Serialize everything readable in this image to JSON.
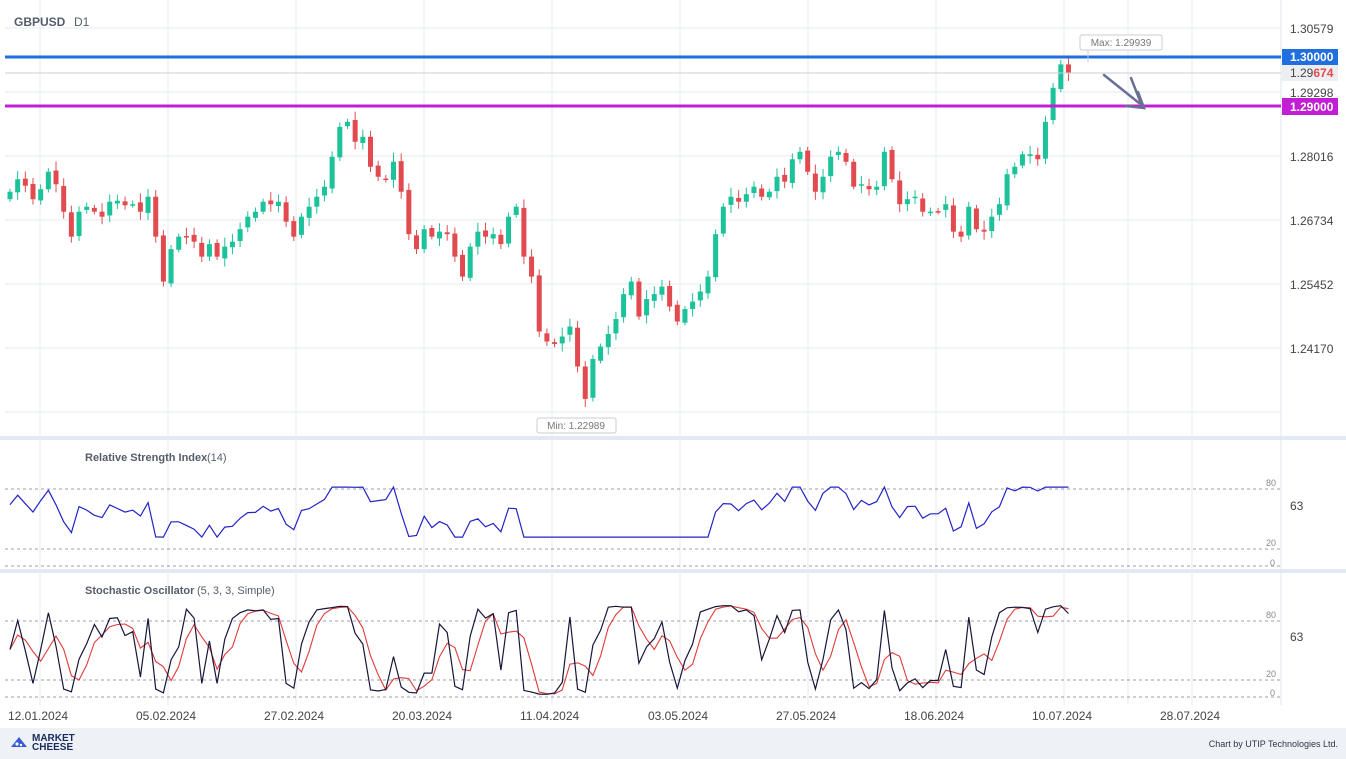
{
  "header": {
    "symbol": "GBPUSD",
    "timeframe": "D1"
  },
  "chart_data": {
    "type": "candlestick",
    "symbol": "GBPUSD",
    "timeframe": "D1",
    "price_axis": {
      "ticks": [
        "1.30579",
        "1.29298",
        "1.28016",
        "1.26734",
        "1.25452",
        "1.24170"
      ],
      "range": [
        1.2205,
        1.3125
      ]
    },
    "date_labels": [
      "12.01.2024",
      "05.02.2024",
      "27.02.2024",
      "20.03.2024",
      "11.04.2024",
      "03.05.2024",
      "27.05.2024",
      "18.06.2024",
      "10.07.2024",
      "28.07.2024"
    ],
    "closes": [
      1.273,
      1.2755,
      1.2742,
      1.2715,
      1.2735,
      1.277,
      1.2745,
      1.269,
      1.264,
      1.269,
      1.27,
      1.269,
      1.268,
      1.271,
      1.2712,
      1.2703,
      1.2705,
      1.269,
      1.272,
      1.264,
      1.255,
      1.2615,
      1.264,
      1.264,
      1.263,
      1.26,
      1.2625,
      1.26,
      1.262,
      1.263,
      1.2655,
      1.268,
      1.269,
      1.271,
      1.2705,
      1.271,
      1.267,
      1.264,
      1.268,
      1.27,
      1.272,
      1.274,
      1.28,
      1.286,
      1.287,
      1.283,
      1.284,
      1.278,
      1.276,
      1.2755,
      1.279,
      1.273,
      1.2645,
      1.2615,
      1.2655,
      1.264,
      1.265,
      1.2645,
      1.26,
      1.256,
      1.262,
      1.265,
      1.264,
      1.2645,
      1.2625,
      1.268,
      1.27,
      1.26,
      1.256,
      1.245,
      1.243,
      1.2425,
      1.244,
      1.246,
      1.238,
      1.2315,
      1.2395,
      1.242,
      1.2445,
      1.2475,
      1.2525,
      1.255,
      1.248,
      1.2515,
      1.2525,
      1.254,
      1.25,
      1.247,
      1.2495,
      1.251,
      1.253,
      1.256,
      1.2645,
      1.27,
      1.272,
      1.271,
      1.2725,
      1.274,
      1.272,
      1.273,
      1.276,
      1.275,
      1.2795,
      1.281,
      1.277,
      1.273,
      1.276,
      1.28,
      1.281,
      1.279,
      1.274,
      1.2745,
      1.2735,
      1.274,
      1.281,
      1.2755,
      1.2705,
      1.2715,
      1.272,
      1.269,
      1.269,
      1.269,
      1.2705,
      1.265,
      1.264,
      1.27,
      1.2655,
      1.265,
      1.268,
      1.2705,
      1.2765,
      1.278,
      1.2805,
      1.2805,
      1.2795,
      1.287,
      1.2938,
      1.2985,
      1.2968
    ],
    "max_label": "Max: 1.29939",
    "min_label": "Min: 1.22989",
    "current_price": {
      "label_prefix": "1.29",
      "label_suffix": "674",
      "value": 1.29674
    },
    "levels": [
      {
        "value": 1.3,
        "label": "1.30000",
        "color": "#1f6fde"
      },
      {
        "value": 1.29,
        "label": "1.29000",
        "color": "#c21fd4"
      }
    ],
    "colors": {
      "bull": "#1cc29a",
      "bear": "#e14b4f"
    }
  },
  "rsi": {
    "title": "Relative Strength Index",
    "params": "(14)",
    "value_label": "63",
    "levels": [
      "80",
      "20",
      "0"
    ],
    "color": "#2323c8"
  },
  "stochastic": {
    "title": "Stochastic Oscillator",
    "params": "(5, 3, 3, Simple)",
    "value_label": "63",
    "levels": [
      "80",
      "20",
      "0"
    ],
    "colors": {
      "k": "#16163a",
      "d": "#e03a3a"
    }
  },
  "footer": {
    "brand_top": "MARKET",
    "brand_bottom": "CHEESE",
    "credit": "Chart by UTIP Technologies Ltd."
  }
}
